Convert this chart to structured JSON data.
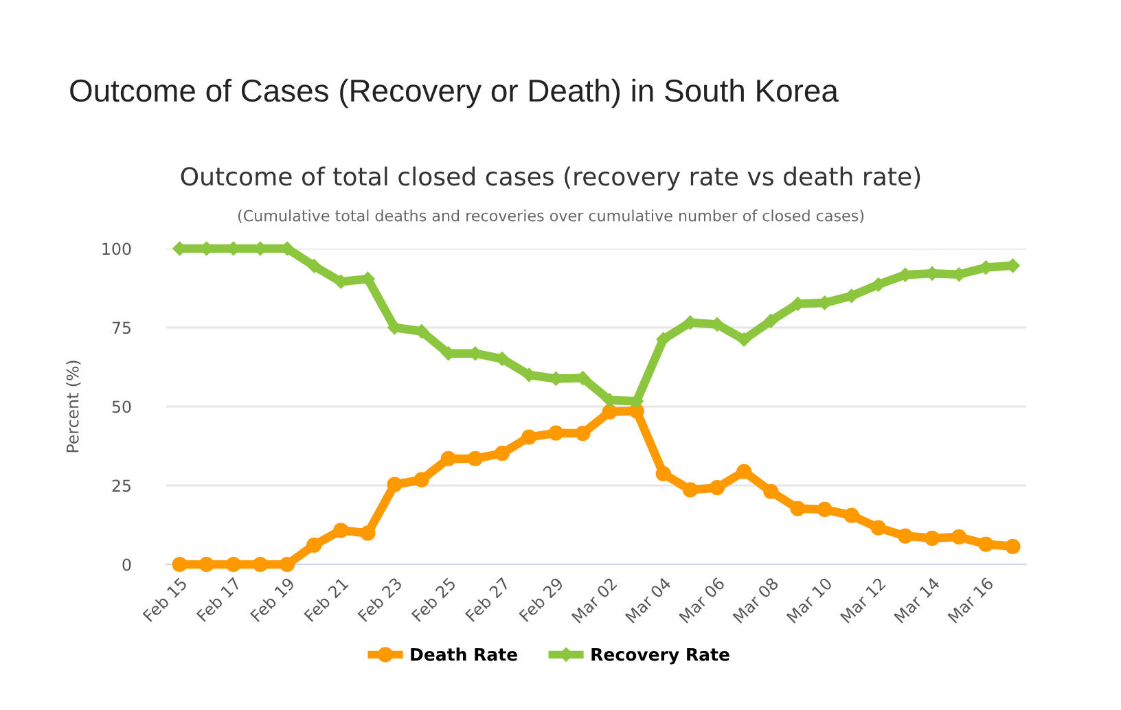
{
  "chart_data": {
    "type": "line",
    "title": "Outcome of Cases (Recovery or Death) in South Korea",
    "subtitle": "Outcome of total closed cases (recovery rate vs death rate)",
    "annotations": [
      "(Cumulative total deaths and recoveries over cumulative number of closed cases)"
    ],
    "ylabel": "Percent (%)",
    "categories": [
      "Feb 15",
      null,
      "Feb 17",
      null,
      "Feb 19",
      null,
      "Feb 21",
      null,
      "Feb 23",
      null,
      "Feb 25",
      null,
      "Feb 27",
      null,
      "Feb 29",
      null,
      "Mar 02",
      null,
      "Mar 04",
      null,
      "Mar 06",
      null,
      "Mar 08",
      null,
      "Mar 10",
      null,
      "Mar 12",
      null,
      "Mar 14",
      null,
      "Mar 16",
      null
    ],
    "series": [
      {
        "name": "Death Rate",
        "color": "#ff9900",
        "marker": "circle",
        "values": [
          0,
          0,
          0,
          0,
          0,
          6.1,
          10.8,
          9.9,
          25.3,
          26.8,
          33.5,
          33.5,
          35.2,
          40.3,
          41.6,
          41.5,
          48.3,
          48.6,
          28.7,
          23.6,
          24.3,
          29.4,
          23.1,
          17.7,
          17.4,
          15.5,
          11.6,
          9.0,
          8.3,
          8.7,
          6.4,
          5.7
        ]
      },
      {
        "name": "Recovery Rate",
        "color": "#8cc63e",
        "marker": "diamond",
        "values": [
          100,
          100,
          100,
          100,
          100,
          94.5,
          89.5,
          90.4,
          75,
          73.8,
          66.8,
          66.8,
          65.1,
          60,
          58.8,
          59,
          52,
          51.7,
          71.3,
          76.6,
          76,
          71.2,
          77.1,
          82.5,
          82.8,
          85,
          88.6,
          91.7,
          92.1,
          91.8,
          94,
          94.6
        ]
      }
    ],
    "ylim": [
      0,
      100
    ],
    "yticks": [
      0,
      25,
      50,
      75,
      100
    ],
    "grid": "y",
    "legend": "bottom",
    "line_style": "solid"
  }
}
